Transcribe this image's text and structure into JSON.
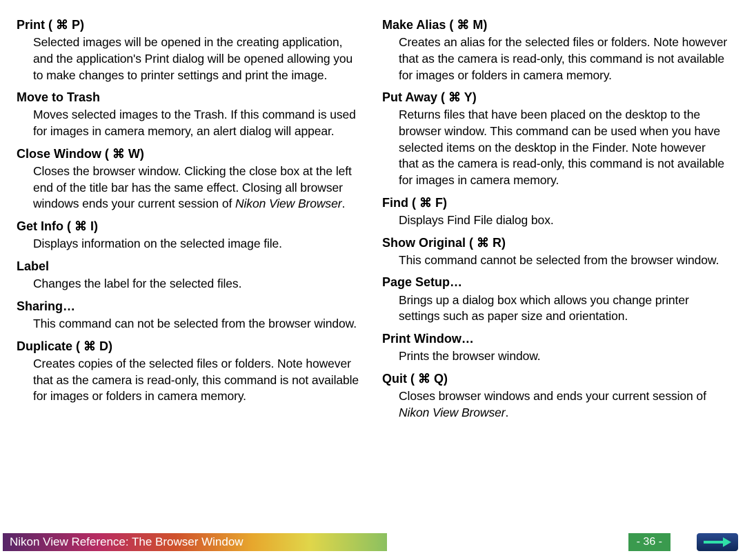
{
  "shortcutGlyph": "⌘",
  "leftColumn": [
    {
      "title": "Print ( ⌘ P)",
      "desc": "Selected images will be opened in the creating application, and the application's Print dialog will be opened allowing you to make changes to printer settings and print the image."
    },
    {
      "title": "Move to Trash",
      "desc": "Moves selected images to the Trash. If this command is used for images in camera memory, an alert dialog will appear."
    },
    {
      "title": "Close Window ( ⌘ W)",
      "descHtml": "Closes the browser window.  Clicking the close box at the left end of the title bar has the same effect.  Closing all browser windows ends your current session of <em>Nikon View Browser</em>."
    },
    {
      "title": "Get Info ( ⌘ I)",
      "desc": "Displays information on the selected image file."
    },
    {
      "title": "Label",
      "desc": "Changes the label for the selected files."
    },
    {
      "title": "Sharing…",
      "desc": "This command can not be selected from the browser window."
    },
    {
      "title": "Duplicate ( ⌘ D)",
      "desc": "Creates copies of the selected files or folders.  Note however that as the camera is read-only, this command is not available for images or folders in camera memory."
    }
  ],
  "rightColumn": [
    {
      "title": "Make Alias ( ⌘ M)",
      "desc": "Creates an alias for the selected files or folders.  Note however that as the camera is read-only, this command is not available for images or folders in camera memory."
    },
    {
      "title": "Put Away ( ⌘ Y)",
      "desc": "Returns files that have been placed on the desktop to the browser window.  This command can be used when you have selected items on the desktop in the Finder.  Note however that as the camera is read-only, this command is not available for images in camera memory."
    },
    {
      "title": "Find ( ⌘ F)",
      "desc": "Displays Find File dialog box."
    },
    {
      "title": "Show Original ( ⌘ R)",
      "desc": "This command cannot be selected from the browser window."
    },
    {
      "title": "Page Setup…",
      "desc": "Brings up a dialog box which allows you change printer settings such as paper size and orientation."
    },
    {
      "title": "Print Window…",
      "desc": "Prints the browser window."
    },
    {
      "title": "Quit ( ⌘ Q)",
      "descHtml": "Closes browser windows and ends your current session of <em>Nikon View Browser</em>."
    }
  ],
  "footer": {
    "title": "Nikon View Reference:  The Browser Window",
    "page": "- 36 -",
    "colors": {
      "pageBadge": "#3a9a4e",
      "arrowBg1": "#2a4a8f",
      "arrowBg2": "#0f2858",
      "arrowFill": "#2fe0a8"
    }
  }
}
